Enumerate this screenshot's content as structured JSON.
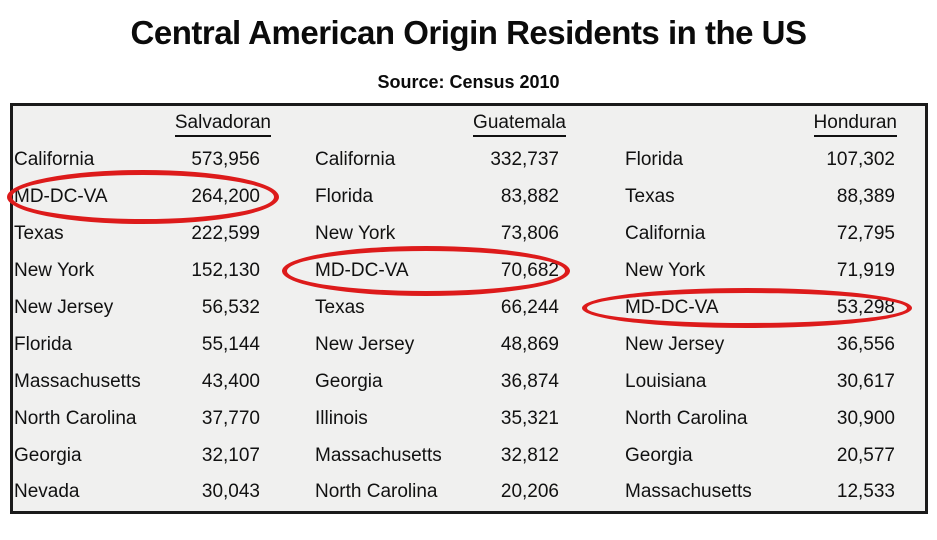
{
  "title": "Central American Origin Residents in the US",
  "subtitle": "Source: Census 2010",
  "accent_color": "#dd1b1b",
  "table_background": "#f0f0ef",
  "border_color": "#1a1a1a",
  "chart_data": {
    "type": "table",
    "title": "Central American Origin Residents in the US",
    "source": "Source: Census 2010",
    "highlight_note": "MD-DC-VA row circled in red in each column group",
    "groups": [
      {
        "header": "Salvadoran",
        "highlighted_state": "MD-DC-VA",
        "rows": [
          {
            "state": "California",
            "value": "573,956"
          },
          {
            "state": "MD-DC-VA",
            "value": "264,200"
          },
          {
            "state": "Texas",
            "value": "222,599"
          },
          {
            "state": "New York",
            "value": "152,130"
          },
          {
            "state": "New Jersey",
            "value": "56,532"
          },
          {
            "state": "Florida",
            "value": "55,144"
          },
          {
            "state": "Massachusetts",
            "value": "43,400"
          },
          {
            "state": "North Carolina",
            "value": "37,770"
          },
          {
            "state": "Georgia",
            "value": "32,107"
          },
          {
            "state": "Nevada",
            "value": "30,043"
          }
        ]
      },
      {
        "header": "Guatemala",
        "highlighted_state": "MD-DC-VA",
        "rows": [
          {
            "state": "California",
            "value": "332,737"
          },
          {
            "state": "Florida",
            "value": "83,882"
          },
          {
            "state": "New York",
            "value": "73,806"
          },
          {
            "state": "MD-DC-VA",
            "value": "70,682"
          },
          {
            "state": "Texas",
            "value": "66,244"
          },
          {
            "state": "New Jersey",
            "value": "48,869"
          },
          {
            "state": "Georgia",
            "value": "36,874"
          },
          {
            "state": "Illinois",
            "value": "35,321"
          },
          {
            "state": "Massachusetts",
            "value": "32,812"
          },
          {
            "state": "North Carolina",
            "value": "20,206"
          }
        ]
      },
      {
        "header": "Honduran",
        "highlighted_state": "MD-DC-VA",
        "rows": [
          {
            "state": "Florida",
            "value": "107,302"
          },
          {
            "state": "Texas",
            "value": "88,389"
          },
          {
            "state": "California",
            "value": "72,795"
          },
          {
            "state": "New York",
            "value": "71,919"
          },
          {
            "state": "MD-DC-VA",
            "value": "53,298"
          },
          {
            "state": "New Jersey",
            "value": "36,556"
          },
          {
            "state": "Louisiana",
            "value": "30,617"
          },
          {
            "state": "North Carolina",
            "value": "30,900"
          },
          {
            "state": "Georgia",
            "value": "20,577"
          },
          {
            "state": "Massachusetts",
            "value": "12,533"
          }
        ]
      }
    ]
  }
}
